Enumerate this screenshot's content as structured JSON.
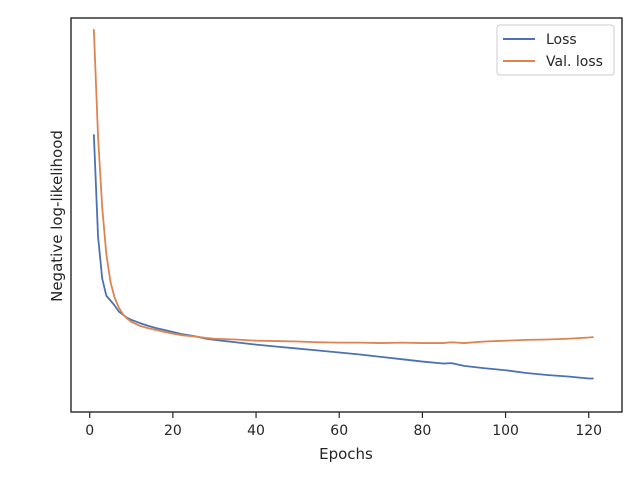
{
  "chart_data": {
    "type": "line",
    "title": "",
    "xlabel": "Epochs",
    "ylabel": "Negative log-likelihood",
    "xlim": [
      -4.5,
      128
    ],
    "ylim": [
      0,
      1
    ],
    "x_ticks": [
      0,
      20,
      40,
      60,
      80,
      100,
      120
    ],
    "y_ticks_shown": false,
    "grid": false,
    "legend": {
      "position": "top-right",
      "entries": [
        "Loss",
        "Val. loss"
      ]
    },
    "colors": {
      "Loss": "#4c72b0",
      "Val. loss": "#dd8452",
      "axes": "#262626"
    },
    "x": [
      1,
      2,
      3,
      4,
      5,
      6,
      7,
      8,
      9,
      10,
      12,
      14,
      16,
      18,
      20,
      22,
      25,
      28,
      30,
      35,
      40,
      45,
      50,
      55,
      60,
      65,
      70,
      75,
      80,
      85,
      87,
      90,
      95,
      100,
      105,
      110,
      115,
      120,
      121
    ],
    "series": [
      {
        "name": "Loss",
        "values": [
          0.703,
          0.446,
          0.339,
          0.295,
          0.283,
          0.27,
          0.255,
          0.247,
          0.239,
          0.234,
          0.226,
          0.219,
          0.213,
          0.208,
          0.203,
          0.198,
          0.193,
          0.186,
          0.183,
          0.177,
          0.171,
          0.166,
          0.161,
          0.156,
          0.151,
          0.146,
          0.14,
          0.134,
          0.128,
          0.123,
          0.124,
          0.117,
          0.111,
          0.106,
          0.099,
          0.094,
          0.09,
          0.085,
          0.085
        ]
      },
      {
        "name": "Val. loss",
        "values": [
          0.97,
          0.7,
          0.52,
          0.4,
          0.33,
          0.29,
          0.265,
          0.248,
          0.237,
          0.229,
          0.219,
          0.213,
          0.208,
          0.203,
          0.199,
          0.195,
          0.192,
          0.188,
          0.186,
          0.184,
          0.181,
          0.18,
          0.179,
          0.177,
          0.176,
          0.176,
          0.175,
          0.176,
          0.175,
          0.175,
          0.177,
          0.175,
          0.179,
          0.181,
          0.183,
          0.184,
          0.186,
          0.189,
          0.19
        ]
      }
    ]
  }
}
